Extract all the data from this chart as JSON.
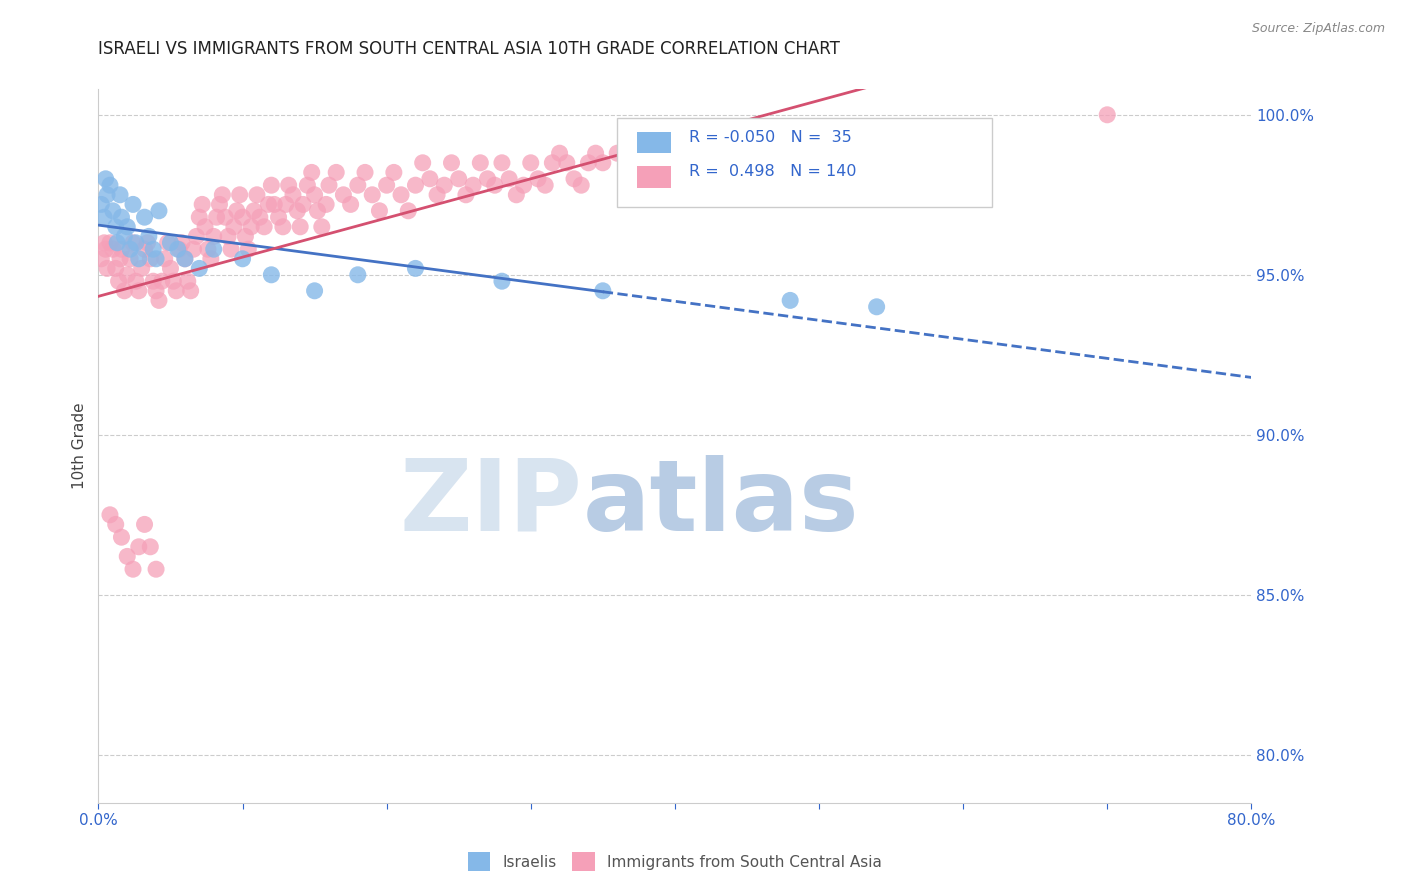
{
  "title": "ISRAELI VS IMMIGRANTS FROM SOUTH CENTRAL ASIA 10TH GRADE CORRELATION CHART",
  "source": "Source: ZipAtlas.com",
  "ylabel": "10th Grade",
  "xmin": 0.0,
  "xmax": 0.8,
  "ymin": 0.785,
  "ymax": 1.008,
  "yticks": [
    0.8,
    0.85,
    0.9,
    0.95,
    1.0
  ],
  "ytick_labels": [
    "80.0%",
    "85.0%",
    "90.0%",
    "95.0%",
    "100.0%"
  ],
  "xticks": [
    0.0,
    0.1,
    0.2,
    0.3,
    0.4,
    0.5,
    0.6,
    0.7,
    0.8
  ],
  "xtick_labels": [
    "0.0%",
    "",
    "",
    "",
    "",
    "",
    "",
    "",
    "80.0%"
  ],
  "israeli_color": "#85b8e8",
  "immigrant_color": "#f5a0b8",
  "israeli_R": -0.05,
  "israeli_N": 35,
  "immigrant_R": 0.498,
  "immigrant_N": 140,
  "trend_israeli_color": "#4472c4",
  "trend_immigrant_color": "#d45070",
  "background_color": "#ffffff",
  "grid_color": "#cccccc",
  "title_color": "#222222",
  "axis_label_color": "#3366cc",
  "watermark_zip": "ZIP",
  "watermark_atlas": "atlas",
  "watermark_color_zip": "#d8e4f0",
  "watermark_color_atlas": "#b8cce4",
  "legend_label_israeli": "Israelis",
  "legend_label_immigrant": "Immigrants from South Central Asia",
  "israeli_x": [
    0.002,
    0.004,
    0.005,
    0.006,
    0.008,
    0.01,
    0.012,
    0.013,
    0.015,
    0.016,
    0.018,
    0.02,
    0.022,
    0.024,
    0.026,
    0.028,
    0.032,
    0.035,
    0.038,
    0.04,
    0.042,
    0.05,
    0.055,
    0.06,
    0.07,
    0.08,
    0.1,
    0.12,
    0.15,
    0.18,
    0.22,
    0.28,
    0.35,
    0.48,
    0.54
  ],
  "israeli_y": [
    0.972,
    0.968,
    0.98,
    0.975,
    0.978,
    0.97,
    0.965,
    0.96,
    0.975,
    0.968,
    0.962,
    0.965,
    0.958,
    0.972,
    0.96,
    0.955,
    0.968,
    0.962,
    0.958,
    0.955,
    0.97,
    0.96,
    0.958,
    0.955,
    0.952,
    0.958,
    0.955,
    0.95,
    0.945,
    0.95,
    0.952,
    0.948,
    0.945,
    0.942,
    0.94
  ],
  "immigrant_x": [
    0.002,
    0.004,
    0.005,
    0.006,
    0.008,
    0.01,
    0.012,
    0.014,
    0.015,
    0.016,
    0.018,
    0.02,
    0.022,
    0.024,
    0.026,
    0.028,
    0.03,
    0.032,
    0.034,
    0.036,
    0.038,
    0.04,
    0.042,
    0.044,
    0.046,
    0.048,
    0.05,
    0.052,
    0.054,
    0.056,
    0.058,
    0.06,
    0.062,
    0.064,
    0.066,
    0.068,
    0.07,
    0.072,
    0.074,
    0.076,
    0.078,
    0.08,
    0.082,
    0.084,
    0.086,
    0.088,
    0.09,
    0.092,
    0.094,
    0.096,
    0.098,
    0.1,
    0.102,
    0.104,
    0.106,
    0.108,
    0.11,
    0.112,
    0.115,
    0.118,
    0.12,
    0.122,
    0.125,
    0.128,
    0.13,
    0.132,
    0.135,
    0.138,
    0.14,
    0.142,
    0.145,
    0.148,
    0.15,
    0.152,
    0.155,
    0.158,
    0.16,
    0.165,
    0.17,
    0.175,
    0.18,
    0.185,
    0.19,
    0.195,
    0.2,
    0.205,
    0.21,
    0.215,
    0.22,
    0.225,
    0.23,
    0.235,
    0.24,
    0.245,
    0.25,
    0.255,
    0.26,
    0.265,
    0.27,
    0.275,
    0.28,
    0.285,
    0.29,
    0.295,
    0.3,
    0.305,
    0.31,
    0.315,
    0.32,
    0.325,
    0.33,
    0.335,
    0.34,
    0.345,
    0.35,
    0.36,
    0.37,
    0.38,
    0.39,
    0.4,
    0.41,
    0.42,
    0.43,
    0.44,
    0.45,
    0.46,
    0.47,
    0.48,
    0.49,
    0.5,
    0.008,
    0.012,
    0.016,
    0.02,
    0.024,
    0.028,
    0.032,
    0.036,
    0.04,
    0.7
  ],
  "immigrant_y": [
    0.955,
    0.96,
    0.958,
    0.952,
    0.96,
    0.958,
    0.952,
    0.948,
    0.955,
    0.958,
    0.945,
    0.95,
    0.955,
    0.96,
    0.948,
    0.945,
    0.952,
    0.958,
    0.96,
    0.955,
    0.948,
    0.945,
    0.942,
    0.948,
    0.955,
    0.96,
    0.952,
    0.948,
    0.945,
    0.958,
    0.96,
    0.955,
    0.948,
    0.945,
    0.958,
    0.962,
    0.968,
    0.972,
    0.965,
    0.958,
    0.955,
    0.962,
    0.968,
    0.972,
    0.975,
    0.968,
    0.962,
    0.958,
    0.965,
    0.97,
    0.975,
    0.968,
    0.962,
    0.958,
    0.965,
    0.97,
    0.975,
    0.968,
    0.965,
    0.972,
    0.978,
    0.972,
    0.968,
    0.965,
    0.972,
    0.978,
    0.975,
    0.97,
    0.965,
    0.972,
    0.978,
    0.982,
    0.975,
    0.97,
    0.965,
    0.972,
    0.978,
    0.982,
    0.975,
    0.972,
    0.978,
    0.982,
    0.975,
    0.97,
    0.978,
    0.982,
    0.975,
    0.97,
    0.978,
    0.985,
    0.98,
    0.975,
    0.978,
    0.985,
    0.98,
    0.975,
    0.978,
    0.985,
    0.98,
    0.978,
    0.985,
    0.98,
    0.975,
    0.978,
    0.985,
    0.98,
    0.978,
    0.985,
    0.988,
    0.985,
    0.98,
    0.978,
    0.985,
    0.988,
    0.985,
    0.988,
    0.985,
    0.982,
    0.985,
    0.988,
    0.985,
    0.982,
    0.985,
    0.988,
    0.99,
    0.988,
    0.985,
    0.988,
    0.99,
    0.992,
    0.875,
    0.872,
    0.868,
    0.862,
    0.858,
    0.865,
    0.872,
    0.865,
    0.858,
    1.0
  ],
  "trend_israeli_x_solid_end": 0.35,
  "trend_israeli_x_dashed_start": 0.35
}
